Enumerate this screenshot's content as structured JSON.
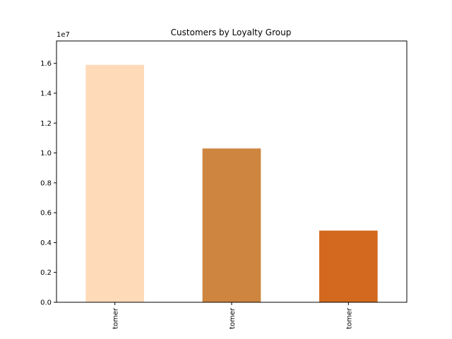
{
  "chart_data": {
    "type": "bar",
    "title": "Customers by Loyalty Group",
    "xlabel": "",
    "ylabel": "",
    "categories": [
      "tomer",
      "tomer",
      "tomer"
    ],
    "values": [
      15900000,
      10300000,
      4800000
    ],
    "colors": [
      "#FFDAB9",
      "#CD853F",
      "#D2691E"
    ],
    "ylim": [
      0,
      17500000
    ],
    "y_ticks": [
      0,
      2000000,
      4000000,
      6000000,
      8000000,
      10000000,
      12000000,
      14000000,
      16000000
    ],
    "y_tick_labels": [
      "0.0",
      "0.2",
      "0.4",
      "0.6",
      "0.8",
      "1.0",
      "1.2",
      "1.4",
      "1.6"
    ],
    "y_offset_label": "1e7",
    "grid": false,
    "legend": null
  }
}
